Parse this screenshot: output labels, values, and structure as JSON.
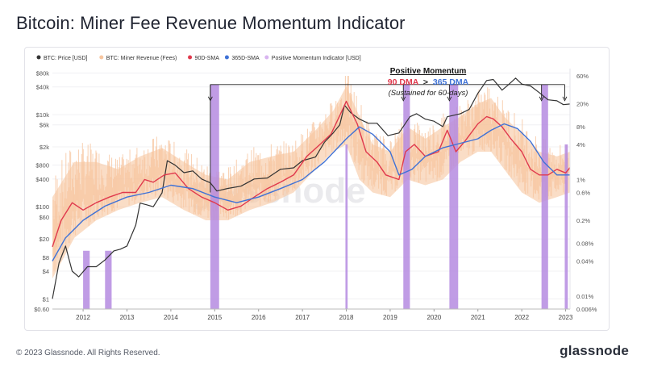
{
  "page": {
    "title": "Bitcoin: Miner Fee Revenue Momentum Indicator",
    "copyright": "© 2023 Glassnode. All Rights Reserved.",
    "brand": "glassnode",
    "watermark": "glassnode"
  },
  "colors": {
    "price": "#333333",
    "revenue": "#f7c6a0",
    "sma90": "#e0394d",
    "sma365": "#3f72d6",
    "momentum": "#b58be0"
  },
  "chart_data": {
    "type": "line",
    "legend": [
      {
        "key": "price",
        "label": "BTC: Price [USD]",
        "color": "#333333"
      },
      {
        "key": "revenue",
        "label": "BTC: Miner Revenue (Fees)",
        "color": "#f7c6a0"
      },
      {
        "key": "sma90",
        "label": "90D-SMA",
        "color": "#e0394d"
      },
      {
        "key": "sma365",
        "label": "365D-SMA",
        "color": "#3f72d6"
      },
      {
        "key": "momentum",
        "label": "Positive Momentum Indicator [USD]",
        "color": "#d8b4f0"
      }
    ],
    "legend_position": "top-left",
    "x_range": [
      2011.3,
      2023.1
    ],
    "x_ticks": [
      "2012",
      "2013",
      "2014",
      "2015",
      "2016",
      "2017",
      "2018",
      "2019",
      "2020",
      "2021",
      "2022",
      "2023"
    ],
    "y_left": {
      "scale": "log",
      "range": [
        0.6,
        100000
      ],
      "ticks": [
        {
          "v": 80000,
          "label": "$80k"
        },
        {
          "v": 40000,
          "label": "$40k"
        },
        {
          "v": 10000,
          "label": "$10k"
        },
        {
          "v": 6000,
          "label": "$6k"
        },
        {
          "v": 2000,
          "label": "$2k"
        },
        {
          "v": 800,
          "label": "$800"
        },
        {
          "v": 400,
          "label": "$400"
        },
        {
          "v": 100,
          "label": "$100"
        },
        {
          "v": 60,
          "label": "$60"
        },
        {
          "v": 20,
          "label": "$20"
        },
        {
          "v": 8,
          "label": "$8"
        },
        {
          "v": 4,
          "label": "$4"
        },
        {
          "v": 1,
          "label": "$1"
        },
        {
          "v": 0.6,
          "label": "$0.60"
        }
      ]
    },
    "y_right": {
      "scale": "log",
      "range": [
        6e-05,
        0.8
      ],
      "ticks": [
        {
          "v": 0.6,
          "label": "60%"
        },
        {
          "v": 0.2,
          "label": "20%"
        },
        {
          "v": 0.08,
          "label": "8%"
        },
        {
          "v": 0.04,
          "label": "4%"
        },
        {
          "v": 0.01,
          "label": "1%"
        },
        {
          "v": 0.006,
          "label": "0.6%"
        },
        {
          "v": 0.002,
          "label": "0.2%"
        },
        {
          "v": 0.0008,
          "label": "0.08%"
        },
        {
          "v": 0.0004,
          "label": "0.04%"
        },
        {
          "v": 0.0001,
          "label": "0.01%"
        },
        {
          "v": 6e-05,
          "label": "0.006%"
        }
      ]
    },
    "series": [
      {
        "name": "BTC: Price [USD]",
        "key": "price",
        "axis": "left",
        "x": [
          2011.3,
          2011.45,
          2011.6,
          2011.75,
          2011.9,
          2012.1,
          2012.3,
          2012.5,
          2012.7,
          2012.85,
          2013.0,
          2013.2,
          2013.3,
          2013.45,
          2013.6,
          2013.8,
          2013.92,
          2014.1,
          2014.3,
          2014.5,
          2014.7,
          2014.9,
          2015.05,
          2015.3,
          2015.6,
          2015.9,
          2016.2,
          2016.5,
          2016.8,
          2017.0,
          2017.3,
          2017.5,
          2017.7,
          2017.85,
          2017.96,
          2018.1,
          2018.3,
          2018.5,
          2018.7,
          2018.95,
          2019.2,
          2019.45,
          2019.6,
          2019.8,
          2020.0,
          2020.2,
          2020.3,
          2020.6,
          2020.8,
          2021.0,
          2021.2,
          2021.35,
          2021.55,
          2021.7,
          2021.86,
          2022.0,
          2022.2,
          2022.4,
          2022.6,
          2022.8,
          2022.95,
          2023.1
        ],
        "values": [
          1,
          6,
          14,
          4,
          3,
          5,
          5,
          7,
          11,
          12,
          14,
          40,
          120,
          110,
          100,
          200,
          1000,
          800,
          550,
          600,
          400,
          330,
          220,
          250,
          280,
          400,
          420,
          650,
          700,
          1000,
          1200,
          2500,
          4000,
          6000,
          16000,
          11000,
          8000,
          6500,
          6500,
          3500,
          4000,
          9000,
          10500,
          8000,
          7200,
          5500,
          9000,
          10500,
          13000,
          29000,
          55000,
          58000,
          34000,
          45000,
          62000,
          46000,
          42000,
          30000,
          21000,
          20000,
          16500,
          17000
        ]
      },
      {
        "name": "90D-SMA",
        "key": "sma90",
        "axis": "right",
        "x": [
          2011.3,
          2011.5,
          2011.75,
          2012.0,
          2012.3,
          2012.6,
          2012.9,
          2013.2,
          2013.4,
          2013.6,
          2013.85,
          2014.1,
          2014.4,
          2014.7,
          2015.0,
          2015.3,
          2015.6,
          2015.9,
          2016.2,
          2016.5,
          2016.8,
          2017.1,
          2017.4,
          2017.65,
          2017.9,
          2018.0,
          2018.25,
          2018.45,
          2018.7,
          2018.9,
          2019.2,
          2019.35,
          2019.55,
          2019.8,
          2020.1,
          2020.3,
          2020.5,
          2020.7,
          2021.0,
          2021.2,
          2021.35,
          2021.55,
          2021.75,
          2022.0,
          2022.2,
          2022.4,
          2022.6,
          2022.8,
          2023.0,
          2023.1
        ],
        "values": [
          0.0007,
          0.002,
          0.004,
          0.003,
          0.004,
          0.005,
          0.006,
          0.006,
          0.01,
          0.009,
          0.012,
          0.013,
          0.007,
          0.005,
          0.004,
          0.003,
          0.0035,
          0.005,
          0.007,
          0.009,
          0.012,
          0.025,
          0.04,
          0.06,
          0.15,
          0.22,
          0.09,
          0.03,
          0.02,
          0.012,
          0.01,
          0.03,
          0.04,
          0.025,
          0.03,
          0.07,
          0.03,
          0.045,
          0.09,
          0.12,
          0.11,
          0.08,
          0.05,
          0.03,
          0.015,
          0.012,
          0.012,
          0.015,
          0.013,
          0.016
        ]
      },
      {
        "name": "365D-SMA",
        "key": "sma365",
        "axis": "right",
        "x": [
          2011.3,
          2011.6,
          2012.0,
          2012.5,
          2013.0,
          2013.5,
          2014.0,
          2014.5,
          2015.0,
          2015.5,
          2016.0,
          2016.5,
          2017.0,
          2017.5,
          2018.0,
          2018.3,
          2018.6,
          2019.0,
          2019.2,
          2019.5,
          2019.8,
          2020.2,
          2020.5,
          2021.0,
          2021.3,
          2021.6,
          2021.9,
          2022.2,
          2022.5,
          2022.8,
          2023.1
        ],
        "values": [
          0.0004,
          0.001,
          0.002,
          0.0035,
          0.005,
          0.006,
          0.008,
          0.007,
          0.005,
          0.004,
          0.005,
          0.007,
          0.01,
          0.02,
          0.05,
          0.08,
          0.06,
          0.03,
          0.012,
          0.015,
          0.025,
          0.035,
          0.04,
          0.05,
          0.07,
          0.09,
          0.075,
          0.045,
          0.02,
          0.012,
          0.012
        ]
      }
    ],
    "revenue_band": {
      "name": "BTC: Miner Revenue (Fees)",
      "key": "revenue",
      "axis": "right",
      "x": [
        2011.3,
        2011.8,
        2012.3,
        2012.8,
        2013.3,
        2013.8,
        2014.3,
        2014.8,
        2015.3,
        2015.8,
        2016.3,
        2016.8,
        2017.3,
        2017.7,
        2018.0,
        2018.3,
        2018.6,
        2019.0,
        2019.4,
        2019.8,
        2020.2,
        2020.6,
        2021.0,
        2021.3,
        2021.6,
        2022.0,
        2022.4,
        2022.8,
        2023.1
      ],
      "low": [
        0.0002,
        0.001,
        0.002,
        0.003,
        0.004,
        0.005,
        0.003,
        0.002,
        0.002,
        0.003,
        0.004,
        0.006,
        0.015,
        0.03,
        0.04,
        0.01,
        0.006,
        0.005,
        0.01,
        0.008,
        0.01,
        0.02,
        0.03,
        0.03,
        0.015,
        0.006,
        0.004,
        0.005,
        0.006
      ],
      "high": [
        0.005,
        0.02,
        0.02,
        0.015,
        0.025,
        0.035,
        0.02,
        0.012,
        0.01,
        0.02,
        0.025,
        0.03,
        0.07,
        0.15,
        0.4,
        0.12,
        0.04,
        0.03,
        0.08,
        0.05,
        0.08,
        0.12,
        0.2,
        0.25,
        0.12,
        0.06,
        0.03,
        0.025,
        0.03
      ]
    },
    "momentum_periods": [
      [
        2012.0,
        2012.15
      ],
      [
        2012.5,
        2012.65
      ],
      [
        2014.9,
        2015.1
      ],
      [
        2017.98,
        2018.03
      ],
      [
        2019.3,
        2019.45
      ],
      [
        2020.35,
        2020.55
      ],
      [
        2022.45,
        2022.6
      ],
      [
        2022.98,
        2023.05
      ]
    ],
    "annotation": {
      "title": "Positive Momentum",
      "line_90": "90 DMA",
      "gt": ">",
      "line_365": "365 DMA",
      "note": "(Sustained for 60-days)",
      "bracket_x": [
        2014.9,
        2019.3,
        2020.35,
        2022.45,
        2022.98
      ],
      "bracket_level": 45000
    }
  }
}
